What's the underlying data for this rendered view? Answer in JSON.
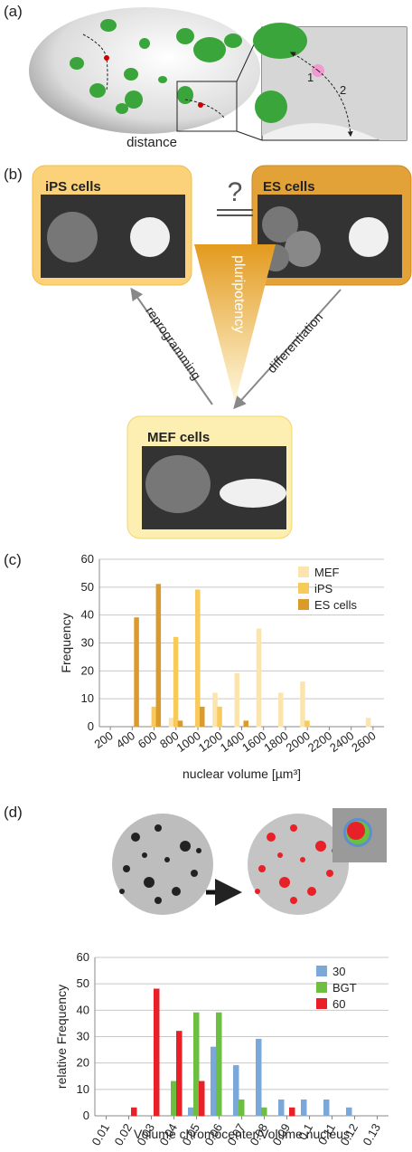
{
  "panels": {
    "a": {
      "label": "(a)",
      "distance": "distance",
      "marker_1": "1",
      "marker_2": "2"
    },
    "b": {
      "label": "(b)",
      "ips": "iPS cells",
      "es": "ES cells",
      "mef": "MEF cells",
      "question": "?",
      "pluripotency": "pluripotency",
      "reprogramming": "reprogramming",
      "differentiation": "differentiation"
    },
    "c": {
      "label": "(c)"
    },
    "d": {
      "label": "(d)"
    }
  },
  "chart_data": [
    {
      "type": "bar",
      "xlabel": "nuclear volume [µm³]",
      "ylabel": "Frequency",
      "categories": [
        "200",
        "400",
        "600",
        "800",
        "1000",
        "1200",
        "1400",
        "1600",
        "1800",
        "2000",
        "2200",
        "2400",
        "2600"
      ],
      "series": [
        {
          "name": "MEF",
          "color": "#fbe4ad",
          "values": [
            0,
            0,
            0,
            3,
            0,
            12,
            19,
            35,
            12,
            16,
            0,
            0,
            3
          ]
        },
        {
          "name": "iPS",
          "color": "#f8ca5c",
          "values": [
            0,
            0,
            7,
            32,
            49,
            7,
            0,
            0,
            0,
            2,
            0,
            0,
            0
          ]
        },
        {
          "name": "ES cells",
          "color": "#dc9a2c",
          "values": [
            0,
            39,
            51,
            2,
            7,
            0,
            2,
            0,
            0,
            0,
            0,
            0,
            0
          ]
        }
      ],
      "ylim": [
        0,
        60
      ],
      "yticks": [
        0,
        10,
        20,
        30,
        40,
        50,
        60
      ],
      "grid": true,
      "legend": "upper right"
    },
    {
      "type": "bar",
      "xlabel": "Volume chromocenter/Volume nucleus",
      "ylabel": "relative Frequency",
      "categories": [
        "0.01",
        "0.02",
        "0.03",
        "0.04",
        "0.05",
        "0.06",
        "0.07",
        "0.08",
        "0.09",
        "0.1",
        "0.11",
        "0.12",
        "0.13"
      ],
      "series": [
        {
          "name": "30",
          "color": "#7aa8d8",
          "values": [
            0,
            0,
            0,
            0,
            3,
            26,
            19,
            29,
            6,
            6,
            6,
            3,
            0
          ]
        },
        {
          "name": "BGT",
          "color": "#6cbf40",
          "values": [
            0,
            0,
            0,
            13,
            39,
            39,
            6,
            3,
            0,
            0,
            0,
            0,
            0
          ]
        },
        {
          "name": "60",
          "color": "#e82028",
          "values": [
            0,
            3,
            48,
            32,
            13,
            0,
            0,
            0,
            3,
            0,
            0,
            0,
            0
          ]
        }
      ],
      "ylim": [
        0,
        60
      ],
      "yticks": [
        0,
        10,
        20,
        30,
        40,
        50,
        60
      ],
      "grid": true,
      "legend": "upper right"
    }
  ]
}
